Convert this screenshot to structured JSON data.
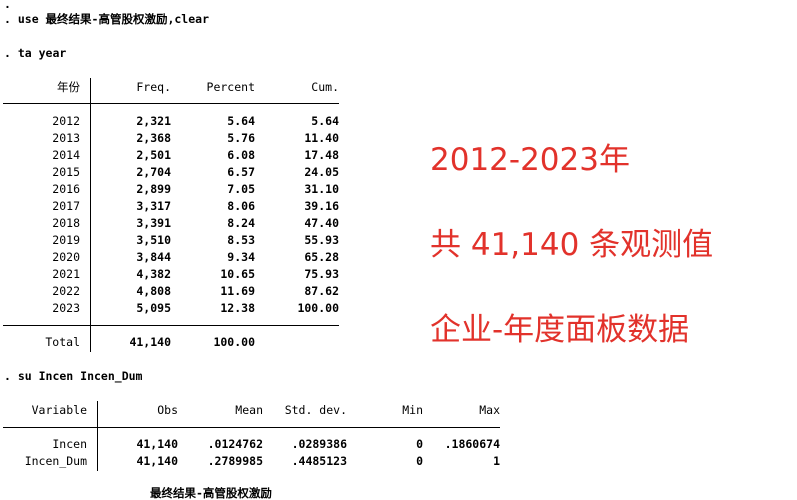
{
  "console": {
    "dot": ".",
    "cmd1": ". use 最终结果-高管股权激励,clear",
    "cmd2": ". ta year",
    "cmd3": ". su Incen Incen_Dum",
    "cut": "最终结果-高管股权激励"
  },
  "tab": {
    "headers": [
      "年份",
      "Freq.",
      "Percent",
      "Cum."
    ],
    "rows": [
      [
        "2012",
        "2,321",
        "5.64",
        "5.64"
      ],
      [
        "2013",
        "2,368",
        "5.76",
        "11.40"
      ],
      [
        "2014",
        "2,501",
        "6.08",
        "17.48"
      ],
      [
        "2015",
        "2,704",
        "6.57",
        "24.05"
      ],
      [
        "2016",
        "2,899",
        "7.05",
        "31.10"
      ],
      [
        "2017",
        "3,317",
        "8.06",
        "39.16"
      ],
      [
        "2018",
        "3,391",
        "8.24",
        "47.40"
      ],
      [
        "2019",
        "3,510",
        "8.53",
        "55.93"
      ],
      [
        "2020",
        "3,844",
        "9.34",
        "65.28"
      ],
      [
        "2021",
        "4,382",
        "10.65",
        "75.93"
      ],
      [
        "2022",
        "4,808",
        "11.69",
        "87.62"
      ],
      [
        "2023",
        "5,095",
        "12.38",
        "100.00"
      ]
    ],
    "total": [
      "Total",
      "41,140",
      "100.00"
    ]
  },
  "su": {
    "headers": [
      "Variable",
      "Obs",
      "Mean",
      "Std. dev.",
      "Min",
      "Max"
    ],
    "rows": [
      [
        "Incen",
        "41,140",
        ".0124762",
        ".0289386",
        "0",
        ".1860674"
      ],
      [
        "Incen_Dum",
        "41,140",
        ".2789985",
        ".4485123",
        "0",
        "1"
      ]
    ]
  },
  "annotations": [
    "2012-2023年",
    "共 41,140 条观测值",
    "企业-年度面板数据"
  ],
  "colors": {
    "annotation": "#e2322b"
  }
}
